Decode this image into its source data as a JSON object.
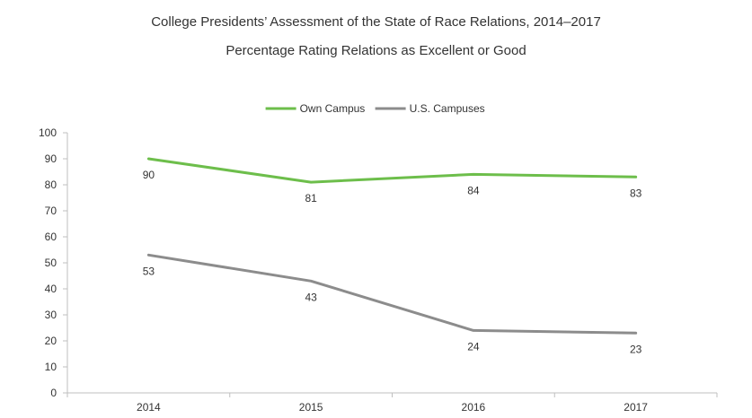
{
  "chart_data": {
    "type": "line",
    "title": "College Presidents’ Assessment of the State of Race Relations, 2014–2017",
    "subtitle": "Percentage Rating Relations as Excellent or Good",
    "xlabel": "",
    "ylabel": "",
    "categories": [
      "2014",
      "2015",
      "2016",
      "2017"
    ],
    "ylim": [
      0,
      100
    ],
    "yticks": [
      0,
      10,
      20,
      30,
      40,
      50,
      60,
      70,
      80,
      90,
      100
    ],
    "grid": false,
    "legend_position": "top",
    "series": [
      {
        "name": "Own Campus",
        "color": "#6DBE4B",
        "values": [
          90,
          81,
          84,
          83
        ]
      },
      {
        "name": "U.S. Campuses",
        "color": "#8C8C8C",
        "values": [
          53,
          43,
          24,
          23
        ]
      }
    ]
  }
}
